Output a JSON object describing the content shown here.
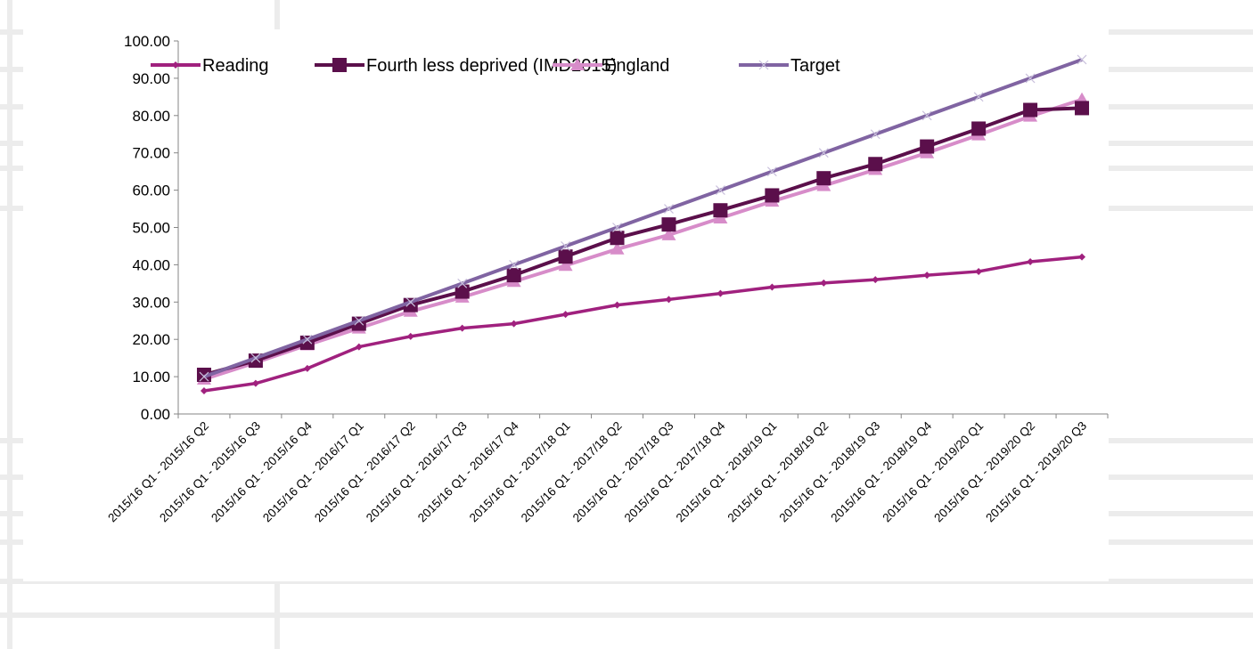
{
  "chart_data": {
    "type": "line",
    "title": "",
    "xlabel": "",
    "ylabel": "",
    "ylim": [
      0,
      100
    ],
    "yticks": [
      "0.00",
      "10.00",
      "20.00",
      "30.00",
      "40.00",
      "50.00",
      "60.00",
      "70.00",
      "80.00",
      "90.00",
      "100.00"
    ],
    "grid": false,
    "legend_position": "top",
    "categories": [
      "2015/16 Q1 - 2015/16 Q2",
      "2015/16 Q1 - 2015/16 Q3",
      "2015/16 Q1 - 2015/16 Q4",
      "2015/16 Q1 - 2016/17 Q1",
      "2015/16 Q1 - 2016/17 Q2",
      "2015/16 Q1 - 2016/17 Q3",
      "2015/16 Q1 - 2016/17 Q4",
      "2015/16 Q1 - 2017/18 Q1",
      "2015/16 Q1 - 2017/18 Q2",
      "2015/16 Q1 - 2017/18 Q3",
      "2015/16 Q1 - 2017/18 Q4",
      "2015/16 Q1 - 2018/19 Q1",
      "2015/16 Q1 - 2018/19 Q2",
      "2015/16 Q1 - 2018/19 Q3",
      "2015/16 Q1 - 2018/19 Q4",
      "2015/16 Q1 - 2019/20 Q1",
      "2015/16 Q1 - 2019/20 Q2",
      "2015/16 Q1 - 2019/20 Q3"
    ],
    "series": [
      {
        "name": "Reading",
        "color": "#a0217e",
        "marker": "diamond",
        "values": [
          6.2,
          8.2,
          12.2,
          18.0,
          20.8,
          23.0,
          24.2,
          26.7,
          29.2,
          30.7,
          32.3,
          34.0,
          35.1,
          36.0,
          37.2,
          38.2,
          40.8,
          42.1
        ]
      },
      {
        "name": "Fourth less deprived (IMD2015)",
        "color": "#5b0f4b",
        "marker": "square",
        "values": [
          10.5,
          14.3,
          19.1,
          24.2,
          29.2,
          32.8,
          37.2,
          42.2,
          47.2,
          50.8,
          54.6,
          58.6,
          63.2,
          67.0,
          71.7,
          76.5,
          81.5,
          82.0
        ]
      },
      {
        "name": "England",
        "color": "#d78cc9",
        "marker": "triangle",
        "values": [
          9.3,
          13.8,
          18.5,
          23.0,
          27.5,
          31.3,
          35.5,
          39.8,
          44.2,
          48.0,
          52.5,
          57.0,
          61.2,
          65.5,
          70.0,
          74.8,
          79.8,
          84.3
        ]
      },
      {
        "name": "Target",
        "color": "#8064a2",
        "marker": "x",
        "values": [
          10,
          15,
          20,
          25,
          30,
          35,
          40,
          45,
          50,
          55,
          60,
          65,
          70,
          75,
          80,
          85,
          90,
          95
        ]
      }
    ]
  }
}
